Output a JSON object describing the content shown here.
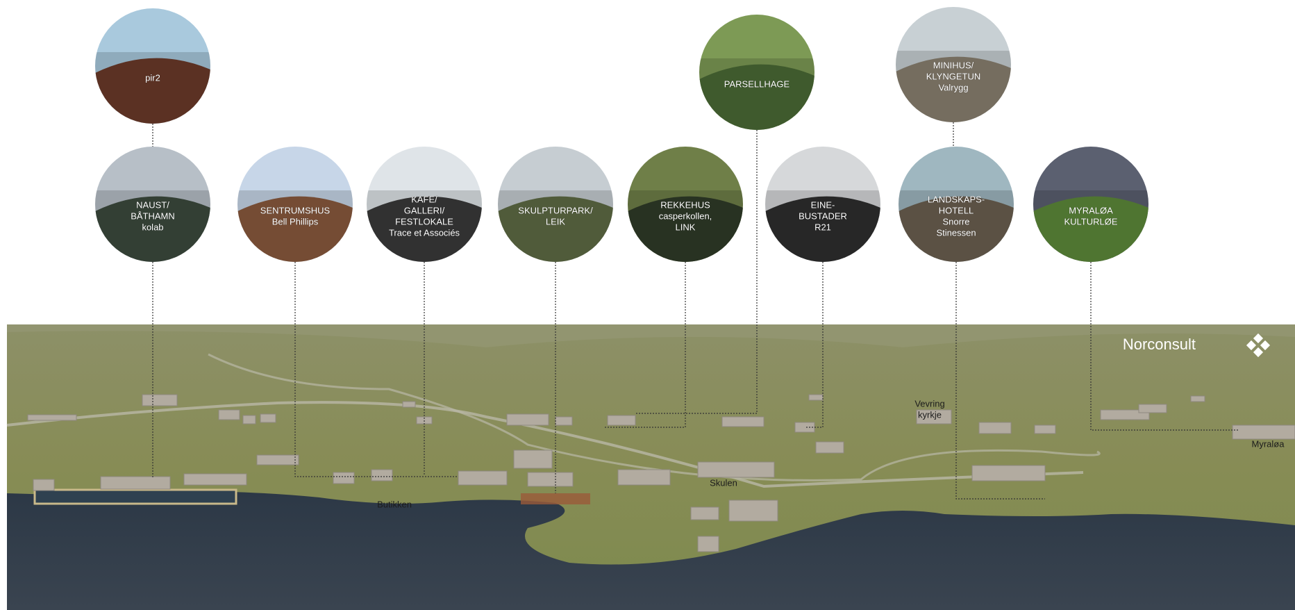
{
  "circles": [
    {
      "lines": [
        "pir2"
      ]
    },
    {
      "lines": [
        "NAUST/",
        "BÅTHAMN",
        "kolab"
      ]
    },
    {
      "lines": [
        "SENTRUMSHUS",
        "Bell Phillips"
      ]
    },
    {
      "lines": [
        "KAFE/",
        "GALLERI/",
        "FESTLOKALE",
        "Trace et Associés"
      ]
    },
    {
      "lines": [
        "SKULPTURPARK/",
        "LEIK"
      ]
    },
    {
      "lines": [
        "REKKEHUS",
        "casperkollen,",
        "LINK"
      ]
    },
    {
      "lines": [
        "PARSELLHAGE"
      ]
    },
    {
      "lines": [
        "EINE-",
        "BUSTADER",
        "R21"
      ]
    },
    {
      "lines": [
        "MINIHUS/",
        "KLYNGETUN",
        "Valrygg"
      ]
    },
    {
      "lines": [
        "LANDSKAPS-",
        "HOTELL",
        "Snorre",
        "Stinessen"
      ]
    },
    {
      "lines": [
        "MYRALØA",
        "KULTURLØE"
      ]
    }
  ],
  "map_labels": [
    {
      "lines": [
        "Butikken"
      ]
    },
    {
      "lines": [
        "Skulen"
      ]
    },
    {
      "lines": [
        "Vevring",
        "kyrkje"
      ]
    },
    {
      "lines": [
        "Myraløa"
      ]
    }
  ],
  "logo": "Norconsult"
}
